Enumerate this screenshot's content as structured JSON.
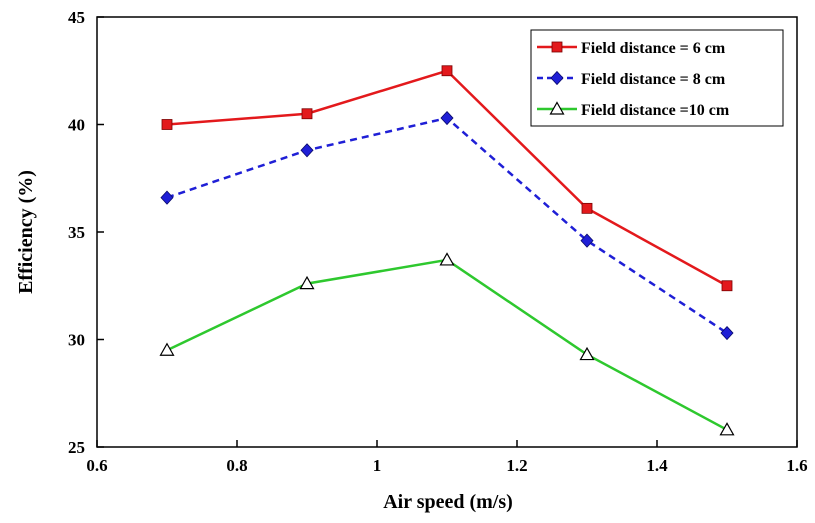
{
  "chart_data": {
    "type": "line",
    "xlabel": "Air speed (m/s)",
    "ylabel": "Efficiency (%)",
    "xlim": [
      0.6,
      1.6
    ],
    "ylim": [
      25,
      45
    ],
    "xticks": [
      "0.6",
      "0.8",
      "1",
      "1.2",
      "1.4",
      "1.6"
    ],
    "yticks": [
      "25",
      "30",
      "35",
      "40",
      "45"
    ],
    "grid": false,
    "legend_position": "top-right",
    "x": [
      0.7,
      0.9,
      1.1,
      1.3,
      1.5
    ],
    "series": [
      {
        "name": "Field distance = 6 cm",
        "values": [
          40.0,
          40.5,
          42.5,
          36.1,
          32.5
        ],
        "color": "#e3191c",
        "marker": "square",
        "dash": "solid"
      },
      {
        "name": "Field distance = 8 cm",
        "values": [
          36.6,
          38.8,
          40.3,
          34.6,
          30.3
        ],
        "color": "#1f1fd6",
        "marker": "diamond",
        "dash": "dashed"
      },
      {
        "name": "Field distance =10 cm",
        "values": [
          29.5,
          32.6,
          33.7,
          29.3,
          25.8
        ],
        "color": "#2ec82e",
        "marker": "triangle-open",
        "dash": "solid"
      }
    ]
  }
}
